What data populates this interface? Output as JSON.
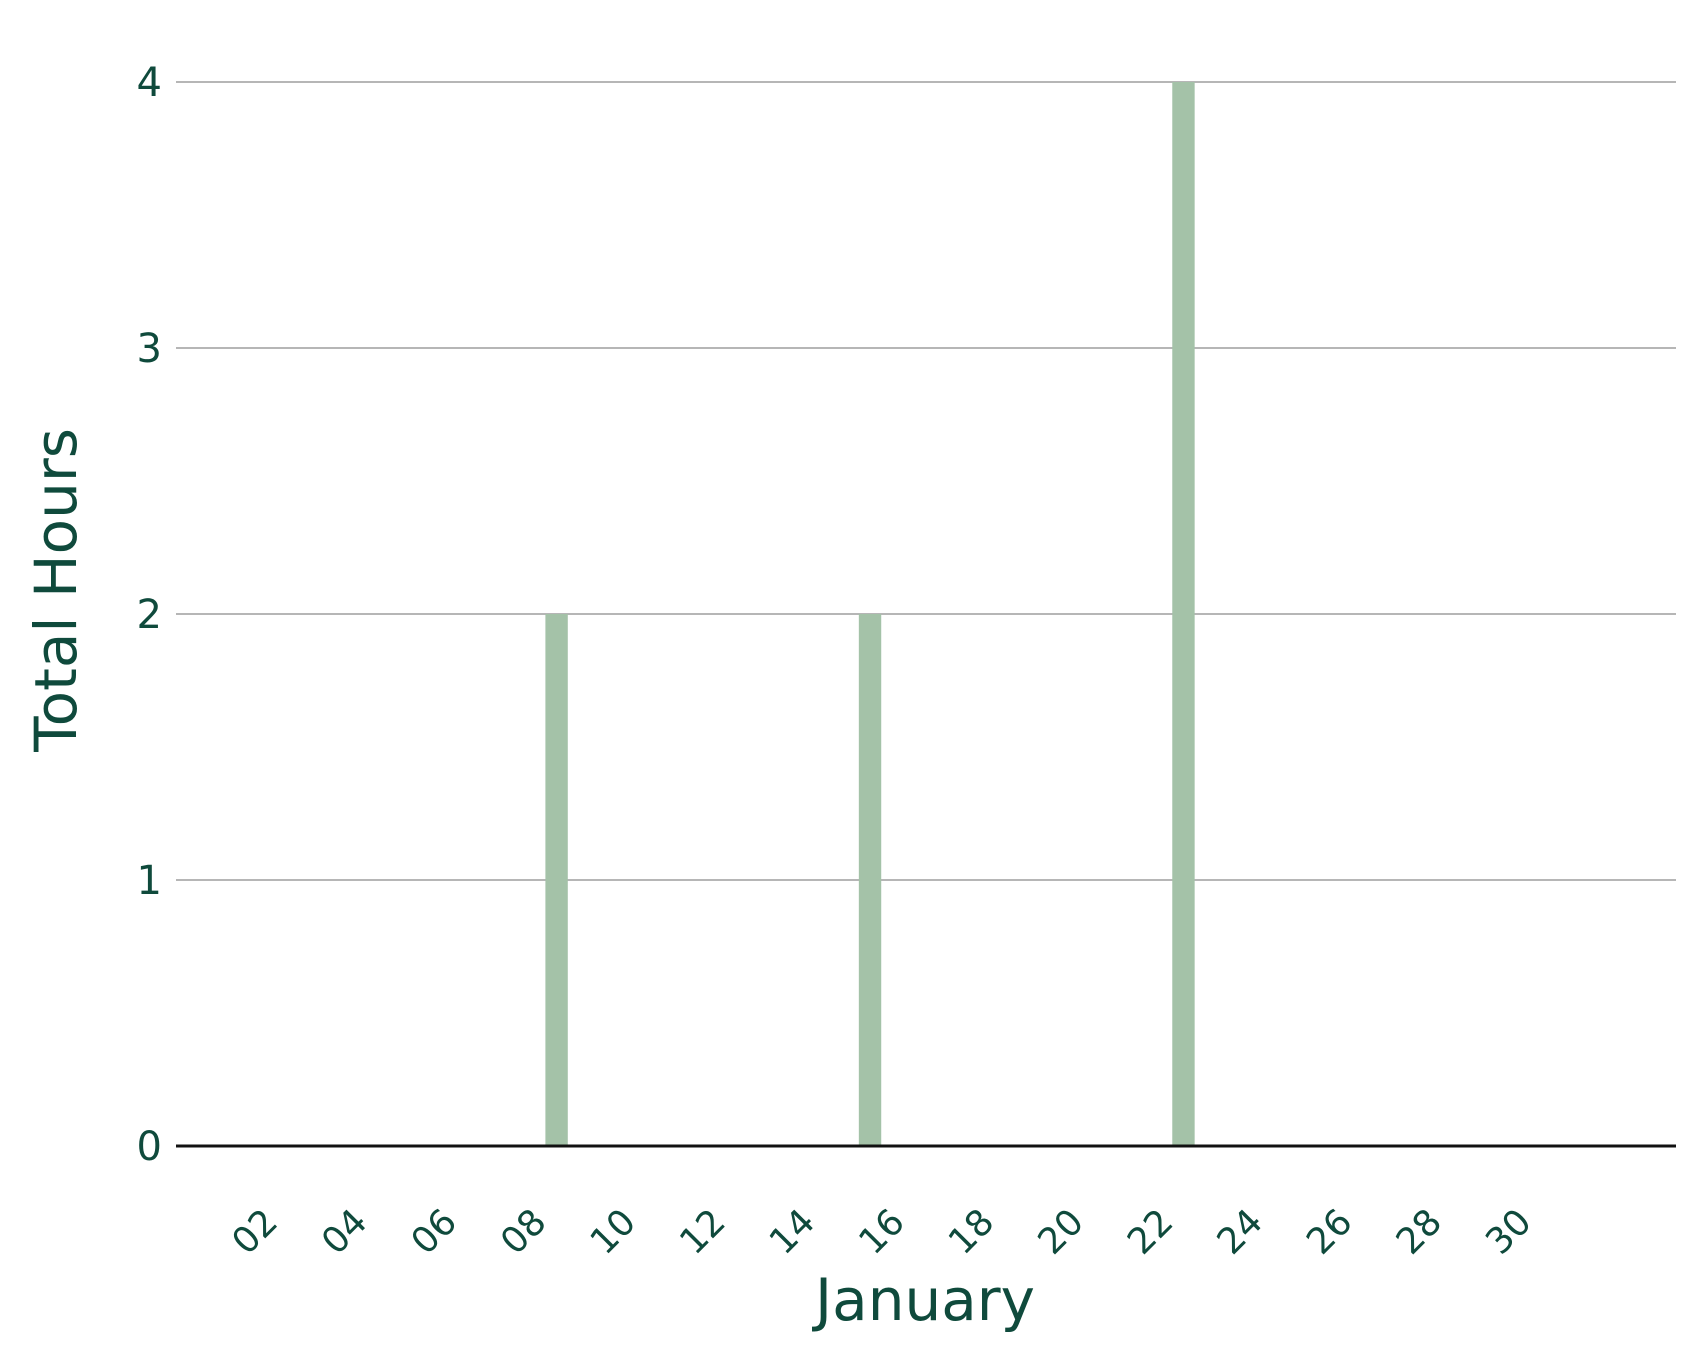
{
  "chart_data": {
    "type": "bar",
    "title": "",
    "xlabel": "January",
    "ylabel": "Total Hours",
    "x_tick_labels": [
      "02",
      "04",
      "06",
      "08",
      "10",
      "12",
      "14",
      "16",
      "18",
      "20",
      "22",
      "24",
      "26",
      "28",
      "30"
    ],
    "x_tick_values": [
      2,
      4,
      6,
      8,
      10,
      12,
      14,
      16,
      18,
      20,
      22,
      24,
      26,
      28,
      30
    ],
    "xlim": [
      0,
      33.5
    ],
    "y_tick_labels": [
      "0",
      "1",
      "2",
      "3",
      "4"
    ],
    "y_tick_values": [
      0,
      1,
      2,
      3,
      4
    ],
    "ylim": [
      0,
      4
    ],
    "points": [
      {
        "x": 8.5,
        "y": 2
      },
      {
        "x": 15.5,
        "y": 2
      },
      {
        "x": 22.5,
        "y": 4
      }
    ],
    "bar_width_days": 0.5,
    "grid": true,
    "legend": "none",
    "colors": {
      "bar": "#a4c2a8",
      "text": "#0f4a3c",
      "grid": "#8a8a8a",
      "baseline": "#111111"
    }
  }
}
